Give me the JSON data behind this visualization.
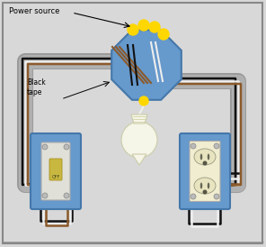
{
  "bg_color": "#d8d8d8",
  "jbox_color": "#6699cc",
  "jbox_edge": "#4477aa",
  "wire_black": "#111111",
  "wire_white": "#eeeeee",
  "wire_brown": "#8B5A2B",
  "wire_yellow_tip": "#FFD700",
  "conduit_outer": "#b0b0b0",
  "conduit_inner": "#c8c8c8",
  "switch_plate": "#e0e0d8",
  "outlet_plate": "#f0edd0",
  "title": "Power source",
  "label_tape": "Black\ntape",
  "light_color": "#f5f5e8",
  "light_edge": "#ccccaa"
}
